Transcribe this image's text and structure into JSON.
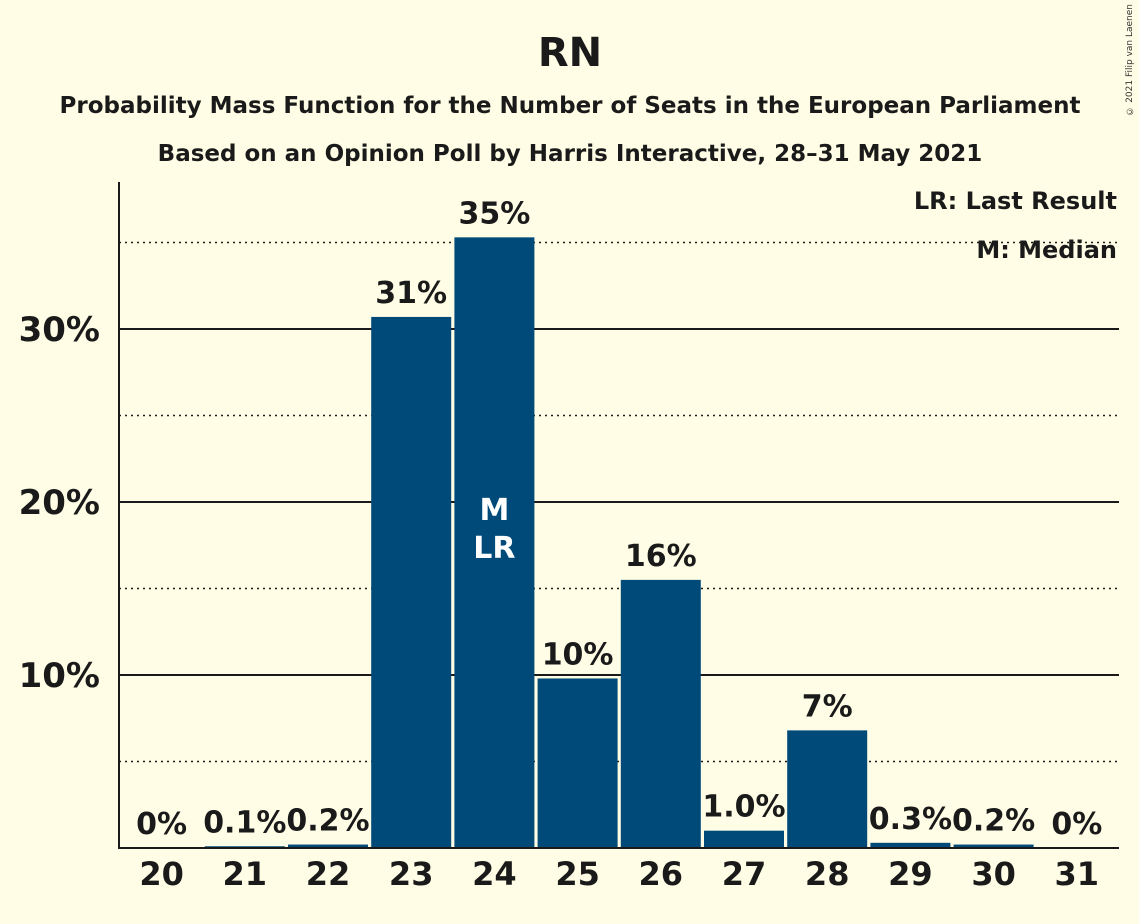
{
  "copyright": "© 2021 Filip van Laenen",
  "chart_data": {
    "type": "bar",
    "title": "RN",
    "subtitle": "Probability Mass Function for the Number of Seats in the European Parliament",
    "subtitle2": "Based on an Opinion Poll by Harris Interactive, 28–31 May 2021",
    "categories": [
      "20",
      "21",
      "22",
      "23",
      "24",
      "25",
      "26",
      "27",
      "28",
      "29",
      "30",
      "31"
    ],
    "values": [
      0,
      0.1,
      0.2,
      30.7,
      35.3,
      9.8,
      15.5,
      1.0,
      6.8,
      0.3,
      0.2,
      0
    ],
    "value_labels": [
      "0%",
      "0.1%",
      "0.2%",
      "31%",
      "35%",
      "10%",
      "16%",
      "1.0%",
      "7%",
      "0.3%",
      "0.2%",
      "0%"
    ],
    "ylim": [
      0,
      38.5
    ],
    "yticks": [
      10,
      20,
      30
    ],
    "ytick_labels": [
      "10%",
      "20%",
      "30%"
    ],
    "minor_gridlines": [
      5,
      15,
      25,
      35
    ],
    "bar_color": "#004a7a",
    "median_category": "24",
    "last_result_category": "24",
    "median_marker": "M",
    "last_result_marker": "LR",
    "legend": [
      "LR: Last Result",
      "M: Median"
    ],
    "legend_position": "top-right"
  }
}
